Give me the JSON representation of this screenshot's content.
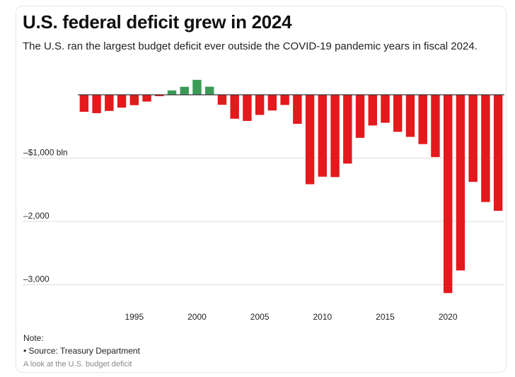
{
  "header": {
    "title": "U.S. federal deficit grew in 2024",
    "subtitle": "The U.S. ran the largest budget deficit ever outside the COVID-19 pandemic years in fiscal 2024."
  },
  "footer": {
    "note_label": "Note:",
    "source": "• Source: Treasury Department",
    "caption": "A look at the U.S. budget deficit"
  },
  "colors": {
    "deficit": "#e3191c",
    "surplus": "#3a9b57",
    "gridline": "#dddddd",
    "zero_line": "#333333"
  },
  "chart_data": {
    "type": "bar",
    "title": "U.S. federal deficit grew in 2024",
    "subtitle": "The U.S. ran the largest budget deficit ever outside the COVID-19 pandemic years in fiscal 2024.",
    "xlabel": "",
    "ylabel": "",
    "x": [
      1991,
      1992,
      1993,
      1994,
      1995,
      1996,
      1997,
      1998,
      1999,
      2000,
      2001,
      2002,
      2003,
      2004,
      2005,
      2006,
      2007,
      2008,
      2009,
      2010,
      2011,
      2012,
      2013,
      2014,
      2015,
      2016,
      2017,
      2018,
      2019,
      2020,
      2021,
      2022,
      2023,
      2024
    ],
    "values": [
      -269,
      -290,
      -255,
      -203,
      -164,
      -107,
      -22,
      69,
      126,
      236,
      128,
      -158,
      -378,
      -413,
      -318,
      -248,
      -161,
      -459,
      -1413,
      -1294,
      -1300,
      -1087,
      -680,
      -485,
      -442,
      -585,
      -665,
      -779,
      -984,
      -3132,
      -2775,
      -1376,
      -1694,
      -1833
    ],
    "xticks": [
      1995,
      2000,
      2005,
      2010,
      2015,
      2020
    ],
    "xtick_labels": [
      "1995",
      "2000",
      "2005",
      "2010",
      "2015",
      "2020"
    ],
    "yticks": [
      -1000,
      -2000,
      -3000
    ],
    "ytick_labels": [
      "–$1,000 bln",
      "–2,000",
      "–3,000"
    ],
    "ylim": [
      -3300,
      250
    ],
    "grid": true,
    "legend": "none"
  }
}
